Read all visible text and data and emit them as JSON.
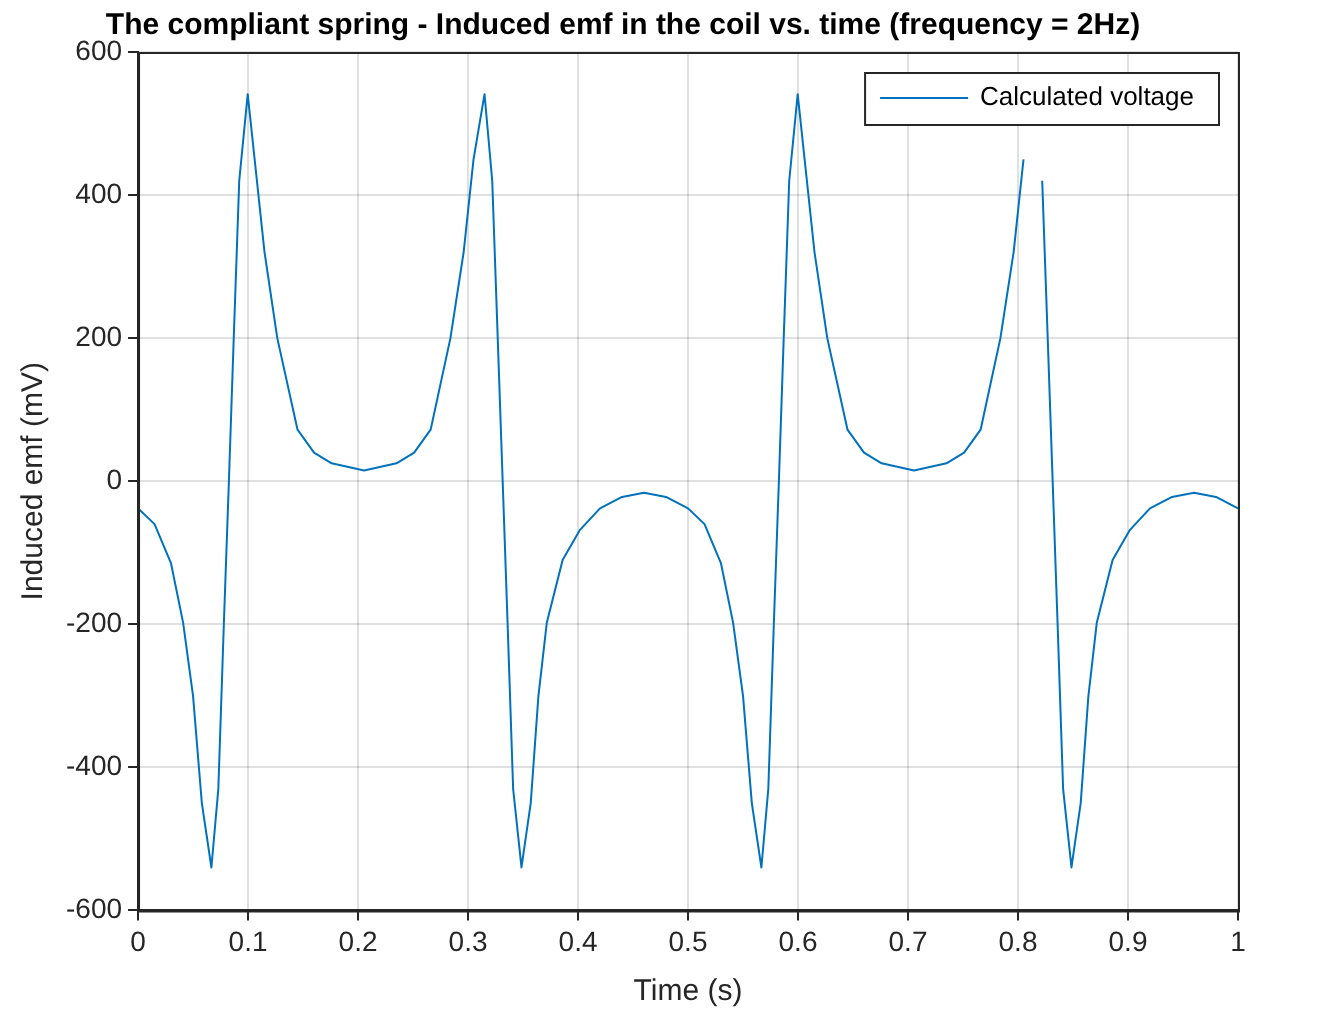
{
  "chart_data": {
    "type": "line",
    "title": "The compliant spring - Induced emf in the coil vs. time (frequency = 2Hz)",
    "xlabel": "Time (s)",
    "ylabel": "Induced emf (mV)",
    "x": [
      0,
      0.015,
      0.03,
      0.041,
      0.05,
      0.058,
      0.0667,
      0.073,
      0.078,
      0.0826,
      0.087,
      0.092,
      0.0997,
      0.106,
      0.115,
      0.1266,
      0.145,
      0.16,
      0.176,
      0.2055,
      0.235,
      0.251,
      0.266,
      0.284,
      0.296,
      0.305,
      0.315,
      0.322,
      0.327,
      0.3315,
      0.336,
      0.341,
      0.3486,
      0.357,
      0.364,
      0.3716,
      0.386,
      0.4018,
      0.42,
      0.44,
      0.46,
      0.48,
      0.5,
      0.515,
      0.53,
      0.541,
      0.55,
      0.558,
      0.5667,
      0.573,
      0.578,
      0.5826,
      0.587,
      0.592,
      0.5997,
      0.606,
      0.615,
      0.6266,
      0.645,
      0.66,
      0.676,
      0.7055,
      0.735,
      0.751,
      0.766,
      0.784,
      0.796,
      0.805,
      0.815,
      0.822,
      0.827,
      0.8315,
      0.836,
      0.841,
      0.8486,
      0.857,
      0.864,
      0.8716,
      0.886,
      0.9018,
      0.92,
      0.94,
      0.96,
      0.98,
      1
    ],
    "series": [
      {
        "name": "Calculated voltage",
        "color": "#0072bd",
        "values": [
          -38,
          -60,
          -115,
          -198,
          -300,
          -450,
          -540,
          -430,
          -200,
          0,
          200,
          420,
          541,
          450,
          320,
          200,
          72,
          40,
          25,
          15,
          25,
          40,
          72,
          200,
          320,
          450,
          541,
          420,
          200,
          0,
          -200,
          -430,
          -540,
          -450,
          -300,
          -198,
          -110,
          -68,
          -38,
          -22,
          -16,
          -22,
          -38,
          -60,
          -115,
          -198,
          -300,
          -450,
          -540,
          -430,
          -200,
          0,
          200,
          420,
          541,
          450,
          320,
          200,
          72,
          40,
          25,
          15,
          25,
          40,
          72,
          200,
          320,
          450,
          null,
          420,
          200,
          0,
          -200,
          -430,
          -540,
          -450,
          -300,
          -198,
          -110,
          -68,
          -38,
          -22,
          -16,
          -22,
          -38
        ]
      }
    ],
    "xlim": [
      0,
      1
    ],
    "xticks": [
      0,
      0.1,
      0.2,
      0.3,
      0.4,
      0.5,
      0.6,
      0.7,
      0.8,
      0.9,
      1
    ],
    "ylim": [
      -600,
      600
    ],
    "yticks": [
      -600,
      -400,
      -200,
      0,
      200,
      400,
      600
    ],
    "grid": true,
    "legend": "top right",
    "marker": "none",
    "line_style": "solid"
  }
}
